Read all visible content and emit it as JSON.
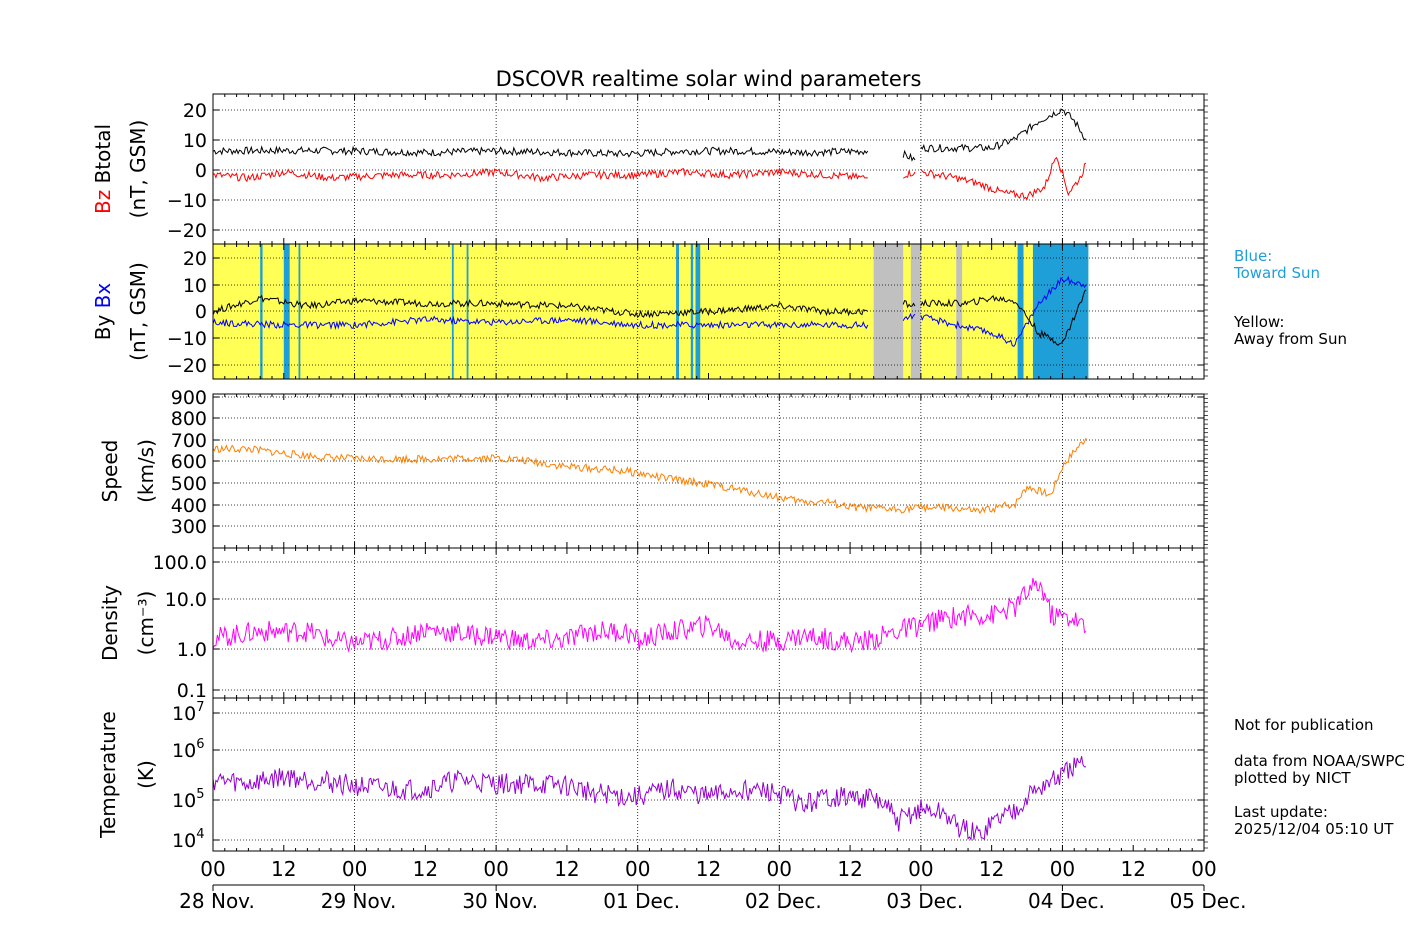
{
  "chart_data": {
    "type": "line",
    "title": "DSCOVR realtime solar wind parameters",
    "x_axis": {
      "unit": "hours since 28 Nov. 00 UT",
      "range": [
        0,
        168
      ],
      "tick_labels": [
        "00",
        "12",
        "00",
        "12",
        "00",
        "12",
        "00",
        "12",
        "00",
        "12",
        "00",
        "12",
        "00",
        "12",
        "00"
      ],
      "date_labels": [
        "28 Nov.",
        "29 Nov.",
        "30 Nov.",
        "01 Dec.",
        "02 Dec.",
        "03 Dec.",
        "04 Dec.",
        "05 Dec."
      ]
    },
    "panels": [
      {
        "id": "magnetic-field-total",
        "ylabel_top": "Btotal",
        "ylabel_colored": "Bz",
        "ylabel_unit": "(nT, GSM)",
        "ylim": [
          -25,
          25
        ],
        "yticks": [
          "20",
          "10",
          "0",
          "−10",
          "−20"
        ],
        "series": [
          {
            "name": "Btotal",
            "color": "#000000",
            "points": [
              [
                0,
                6
              ],
              [
                12,
                6.2
              ],
              [
                24,
                6
              ],
              [
                36,
                5.5
              ],
              [
                48,
                6
              ],
              [
                60,
                5.5
              ],
              [
                70,
                5
              ],
              [
                80,
                6
              ],
              [
                90,
                6
              ],
              [
                100,
                5.5
              ],
              [
                111,
                6
              ],
              [
                111.5,
                null
              ],
              [
                117,
                5
              ],
              [
                119,
                3
              ],
              [
                119.5,
                null
              ],
              [
                120,
                7
              ],
              [
                128,
                7
              ],
              [
                132,
                7
              ],
              [
                136,
                10
              ],
              [
                140,
                16
              ],
              [
                144,
                20
              ],
              [
                146,
                16
              ],
              [
                148,
                10
              ]
            ]
          },
          {
            "name": "Bz",
            "color": "#ff0000",
            "points": [
              [
                0,
                -2
              ],
              [
                6,
                -3
              ],
              [
                12,
                -1
              ],
              [
                20,
                -3
              ],
              [
                30,
                -2
              ],
              [
                40,
                -2
              ],
              [
                48,
                -1
              ],
              [
                56,
                -3
              ],
              [
                64,
                -2
              ],
              [
                72,
                -2
              ],
              [
                80,
                -1
              ],
              [
                88,
                -2
              ],
              [
                96,
                -1
              ],
              [
                104,
                -2
              ],
              [
                111,
                -3
              ],
              [
                111.5,
                null
              ],
              [
                117,
                -2
              ],
              [
                119,
                -1
              ],
              [
                119.5,
                null
              ],
              [
                120,
                -1
              ],
              [
                126,
                -3
              ],
              [
                130,
                -5
              ],
              [
                134,
                -8
              ],
              [
                138,
                -9
              ],
              [
                141,
                -6
              ],
              [
                143,
                5
              ],
              [
                145,
                -8
              ],
              [
                147,
                -3
              ],
              [
                148,
                2
              ]
            ]
          }
        ]
      },
      {
        "id": "magnetic-field-xy",
        "ylabel_top": "Bx",
        "ylabel_colored": "Bx",
        "ylabel_bottom": "By",
        "ylabel_unit": "(nT, GSM)",
        "ylim": [
          -25,
          25
        ],
        "yticks": [
          "20",
          "10",
          "0",
          "−10",
          "−20"
        ],
        "background": {
          "default": "Away from Sun",
          "segments": [
            {
              "start": 8,
              "end": 8.4,
              "sector": "Toward Sun"
            },
            {
              "start": 12,
              "end": 13,
              "sector": "Toward Sun"
            },
            {
              "start": 14.5,
              "end": 14.8,
              "sector": "Toward Sun"
            },
            {
              "start": 40.5,
              "end": 40.8,
              "sector": "Toward Sun"
            },
            {
              "start": 43,
              "end": 43.3,
              "sector": "Toward Sun"
            },
            {
              "start": 78.5,
              "end": 79,
              "sector": "Toward Sun"
            },
            {
              "start": 81,
              "end": 81.4,
              "sector": "Toward Sun"
            },
            {
              "start": 81.8,
              "end": 82.6,
              "sector": "Toward Sun"
            },
            {
              "start": 112,
              "end": 117,
              "sector": "no data"
            },
            {
              "start": 118.3,
              "end": 120,
              "sector": "no data"
            },
            {
              "start": 126,
              "end": 127,
              "sector": "no data"
            },
            {
              "start": 136.4,
              "end": 137.4,
              "sector": "Toward Sun"
            },
            {
              "start": 139,
              "end": 148.4,
              "sector": "Toward Sun"
            }
          ]
        },
        "series": [
          {
            "name": "By",
            "color": "#000000",
            "points": [
              [
                0,
                0
              ],
              [
                8,
                5
              ],
              [
                16,
                2
              ],
              [
                24,
                4
              ],
              [
                36,
                3
              ],
              [
                48,
                3
              ],
              [
                60,
                2
              ],
              [
                72,
                -1
              ],
              [
                84,
                0
              ],
              [
                96,
                2
              ],
              [
                104,
                0
              ],
              [
                111,
                0
              ],
              [
                111.5,
                null
              ],
              [
                117,
                3
              ],
              [
                119,
                2
              ],
              [
                119.5,
                null
              ],
              [
                120,
                3
              ],
              [
                128,
                3
              ],
              [
                132,
                5
              ],
              [
                136,
                4
              ],
              [
                140,
                -8
              ],
              [
                144,
                -12
              ],
              [
                148,
                8
              ]
            ]
          },
          {
            "name": "Bx",
            "color": "#0000ff",
            "points": [
              [
                0,
                -4
              ],
              [
                12,
                -5
              ],
              [
                24,
                -5
              ],
              [
                36,
                -3
              ],
              [
                48,
                -4
              ],
              [
                60,
                -3
              ],
              [
                72,
                -5
              ],
              [
                84,
                -5
              ],
              [
                96,
                -5
              ],
              [
                104,
                -5
              ],
              [
                111,
                -5
              ],
              [
                111.5,
                null
              ],
              [
                117,
                -3
              ],
              [
                119,
                -1
              ],
              [
                119.5,
                null
              ],
              [
                120,
                -2
              ],
              [
                128,
                -6
              ],
              [
                132,
                -8
              ],
              [
                136,
                -12
              ],
              [
                140,
                3
              ],
              [
                144,
                12
              ],
              [
                148,
                10
              ]
            ]
          }
        ]
      },
      {
        "id": "speed",
        "ylabel_top": "Speed",
        "ylabel_unit": "(km/s)",
        "ylim": [
          210,
          910
        ],
        "yticks": [
          "900",
          "800",
          "700",
          "600",
          "500",
          "400",
          "300"
        ],
        "series": [
          {
            "name": "Speed",
            "color": "#ff8000",
            "points": [
              [
                0,
                660
              ],
              [
                6,
                660
              ],
              [
                12,
                640
              ],
              [
                18,
                625
              ],
              [
                24,
                615
              ],
              [
                36,
                615
              ],
              [
                48,
                620
              ],
              [
                52,
                610
              ],
              [
                60,
                580
              ],
              [
                70,
                560
              ],
              [
                76,
                530
              ],
              [
                84,
                500
              ],
              [
                96,
                440
              ],
              [
                100,
                420
              ],
              [
                104,
                420
              ],
              [
                108,
                395
              ],
              [
                112,
                390
              ],
              [
                116,
                385
              ],
              [
                120,
                395
              ],
              [
                126,
                390
              ],
              [
                130,
                375
              ],
              [
                134,
                400
              ],
              [
                136,
                410
              ],
              [
                138,
                490
              ],
              [
                142,
                450
              ],
              [
                144,
                580
              ],
              [
                146,
                650
              ],
              [
                148,
                710
              ]
            ]
          }
        ]
      },
      {
        "id": "density",
        "ylabel_top": "Density",
        "ylabel_unit": "(cm⁻³)",
        "scale": "log",
        "ylim": [
          0.07,
          220
        ],
        "yticks": [
          "100.0",
          "10.0",
          "1.0",
          "0.1"
        ],
        "series": [
          {
            "name": "Density",
            "color": "#ff00ff",
            "points": [
              [
                0,
                1.7
              ],
              [
                8,
                2.5
              ],
              [
                16,
                2.5
              ],
              [
                20,
                1.5
              ],
              [
                24,
                1.3
              ],
              [
                32,
                1.8
              ],
              [
                36,
                2.8
              ],
              [
                44,
                2.0
              ],
              [
                48,
                2.0
              ],
              [
                52,
                1.5
              ],
              [
                56,
                1.5
              ],
              [
                60,
                1.6
              ],
              [
                64,
                2.5
              ],
              [
                70,
                2.5
              ],
              [
                72,
                1.4
              ],
              [
                76,
                2.2
              ],
              [
                80,
                2.8
              ],
              [
                84,
                3.5
              ],
              [
                88,
                1.5
              ],
              [
                96,
                1.5
              ],
              [
                100,
                2.0
              ],
              [
                104,
                1.7
              ],
              [
                108,
                1.4
              ],
              [
                112,
                1.6
              ],
              [
                116,
                2.5
              ],
              [
                120,
                3.5
              ],
              [
                124,
                5.0
              ],
              [
                128,
                6.0
              ],
              [
                132,
                6.0
              ],
              [
                136,
                9.0
              ],
              [
                140,
                30.0
              ],
              [
                142,
                6.0
              ],
              [
                146,
                5.0
              ],
              [
                148,
                2.5
              ]
            ]
          }
        ]
      },
      {
        "id": "temperature",
        "ylabel_top": "Temperature",
        "ylabel_unit": "(K)",
        "scale": "log",
        "ylim": [
          5500,
          20000000
        ],
        "yticks": [
          "10^7",
          "10^6",
          "10^5",
          "10^4"
        ],
        "series": [
          {
            "name": "Temperature",
            "color": "#9400d3",
            "points": [
              [
                0,
                250000
              ],
              [
                6,
                200000
              ],
              [
                12,
                300000
              ],
              [
                24,
                180000
              ],
              [
                30,
                150000
              ],
              [
                36,
                150000
              ],
              [
                42,
                250000
              ],
              [
                48,
                200000
              ],
              [
                54,
                200000
              ],
              [
                60,
                180000
              ],
              [
                64,
                130000
              ],
              [
                70,
                100000
              ],
              [
                72,
                100000
              ],
              [
                78,
                150000
              ],
              [
                84,
                100000
              ],
              [
                90,
                150000
              ],
              [
                96,
                120000
              ],
              [
                100,
                60000
              ],
              [
                104,
                100000
              ],
              [
                112,
                90000
              ],
              [
                116,
                25000
              ],
              [
                120,
                50000
              ],
              [
                124,
                40000
              ],
              [
                126,
                20000
              ],
              [
                130,
                12000
              ],
              [
                136,
                50000
              ],
              [
                140,
                150000
              ],
              [
                144,
                300000
              ],
              [
                146,
                500000
              ],
              [
                148,
                500000
              ]
            ]
          }
        ]
      }
    ]
  },
  "annotations": {
    "sector_blue": "Blue:\nToward Sun",
    "sector_yellow": "Yellow:\nAway from Sun",
    "disclaimer": "Not for publication",
    "credits": "data from NOAA/SWPC\nplotted by NICT",
    "last_update": "Last update:\n2025/12/04 05:10 UT"
  },
  "colors": {
    "toward_sun": "#1e9fd8",
    "away_from_sun": "#ffff55",
    "no_data": "#c0c0c0"
  }
}
